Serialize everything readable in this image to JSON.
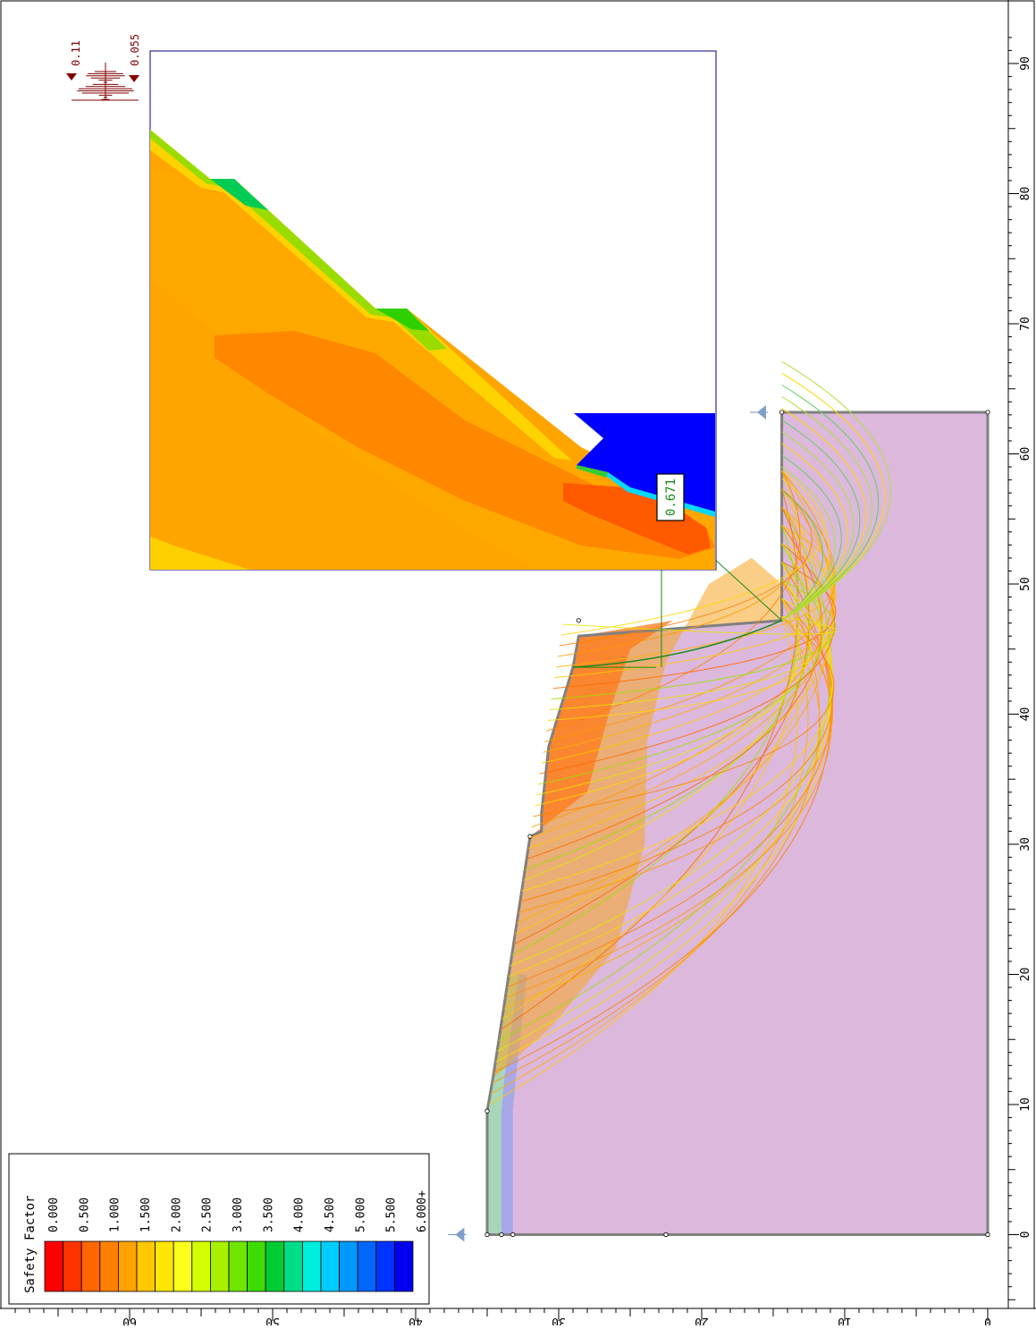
{
  "legend": {
    "title": "Safety Factor",
    "labels": [
      "0.000",
      "0.500",
      "1.000",
      "1.500",
      "2.000",
      "2.500",
      "3.000",
      "3.500",
      "4.000",
      "4.500",
      "5.000",
      "5.500",
      "6.000+"
    ],
    "colors": [
      "#ff0000",
      "#ff3300",
      "#ff6600",
      "#ff8000",
      "#ffa200",
      "#ffc800",
      "#ffe600",
      "#fbff1a",
      "#d4ff00",
      "#a8f000",
      "#6ee600",
      "#3cdc00",
      "#00cc33",
      "#00dd88",
      "#00eedd",
      "#00ccff",
      "#0099ff",
      "#0066ff",
      "#0033ff",
      "#0000ee"
    ]
  },
  "seismic": {
    "horizontal": "0.11",
    "vertical": "0.055"
  },
  "chart_data": {
    "type": "heatmap",
    "title": "",
    "x_axis": {
      "ticks": [
        0,
        10,
        20,
        30,
        40,
        50,
        60,
        70,
        80,
        90
      ],
      "range": [
        -5,
        92
      ]
    },
    "y_axis": {
      "ticks": [
        0,
        10,
        20,
        30,
        40,
        50,
        60
      ],
      "range": [
        0,
        68
      ]
    },
    "critical_factor_of_safety": "0.671",
    "slope_profile": [
      [
        0,
        35.0
      ],
      [
        9.5,
        35.0
      ],
      [
        12,
        34.6
      ],
      [
        30.6,
        32.0
      ],
      [
        31.0,
        31.2
      ],
      [
        32.4,
        31.2
      ],
      [
        37.5,
        30.7
      ],
      [
        43.6,
        29.0
      ],
      [
        46.0,
        28.6
      ],
      [
        47.2,
        14.4
      ],
      [
        63.2,
        14.4
      ],
      [
        63.2,
        0
      ],
      [
        0,
        0
      ]
    ],
    "water_table_markers": [
      [
        0,
        37.1
      ],
      [
        63.2,
        16.0
      ]
    ],
    "critical_surface": {
      "center": [
        47.2,
        26.3
      ],
      "radius": 11.9
    },
    "inset": {
      "type": "contour zoom of critical slip zone",
      "safety_factor_label": "0.671"
    }
  }
}
